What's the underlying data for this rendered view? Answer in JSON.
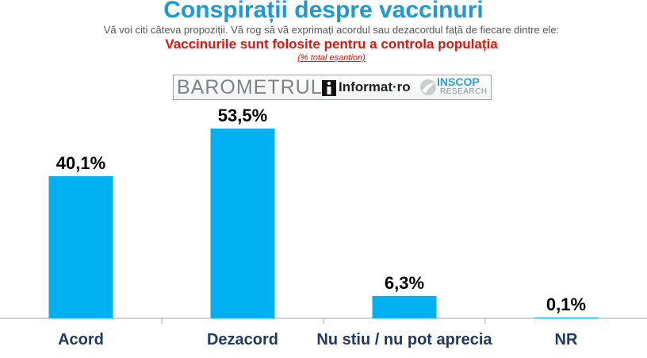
{
  "header": {
    "title": "Conspirații despre vaccinuri",
    "subtitle": "Vă voi citi câteva propoziții. Vă rog să vă exprimați acordul sau dezacordul față de fiecare dintre ele:",
    "question": "Vaccinurile sunt folosite pentru a controla populația",
    "note": "(% total eșantion)"
  },
  "logos": {
    "barometrul": "BAROMETRUL",
    "informat": "Informat·ro",
    "inscop": "INSCOP",
    "research": "RESEARCH"
  },
  "colors": {
    "title": "#1b9ad6",
    "question": "#e1140e",
    "bar": "#00b0f0",
    "category_label": "#1f3864",
    "value_label": "#000000"
  },
  "chart_data": {
    "type": "bar",
    "categories": [
      "Acord",
      "Dezacord",
      "Nu stiu / nu pot aprecia",
      "NR"
    ],
    "values": [
      40.1,
      53.5,
      6.3,
      0.1
    ],
    "value_labels": [
      "40,1%",
      "53,5%",
      "6,3%",
      "0,1%"
    ],
    "ylim": [
      0,
      53.5
    ],
    "grid": false,
    "legend": "none"
  }
}
